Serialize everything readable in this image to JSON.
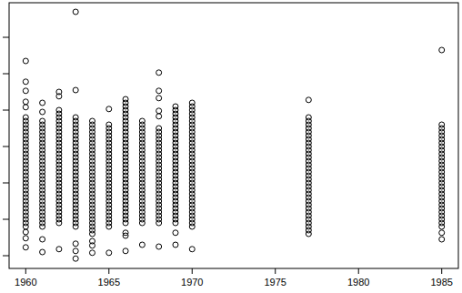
{
  "chart_data": {
    "type": "scatter",
    "x": [
      1960,
      1961,
      1962,
      1963,
      1964,
      1965,
      1966,
      1967,
      1968,
      1969,
      1970,
      1977,
      1985
    ],
    "values": [
      [
        0.8,
        0.9,
        1.0,
        1.1,
        1.2,
        1.3,
        1.4,
        1.5,
        1.6,
        1.7,
        1.8,
        1.9,
        2.0,
        2.1,
        2.2,
        2.3,
        2.4,
        2.5,
        2.6,
        2.7,
        2.8,
        2.9,
        3.0,
        3.1,
        3.2,
        3.3,
        3.4,
        3.5,
        3.6,
        3.7,
        3.8,
        5.35,
        4.78,
        4.53,
        4.23,
        4.08,
        0.65,
        0.48,
        0.23
      ],
      [
        0.8,
        0.9,
        1.0,
        1.1,
        1.2,
        1.3,
        1.4,
        1.5,
        1.6,
        1.7,
        1.8,
        1.9,
        2.0,
        2.1,
        2.2,
        2.3,
        2.4,
        2.5,
        2.6,
        2.7,
        2.8,
        2.9,
        3.0,
        3.1,
        3.2,
        3.3,
        3.4,
        3.5,
        3.6,
        3.7,
        4.2,
        3.95,
        0.45,
        0.1
      ],
      [
        0.9,
        1.0,
        1.1,
        1.2,
        1.3,
        1.4,
        1.5,
        1.6,
        1.7,
        1.8,
        1.9,
        2.0,
        2.1,
        2.2,
        2.3,
        2.4,
        2.5,
        2.6,
        2.7,
        2.8,
        2.9,
        3.0,
        3.1,
        3.2,
        3.3,
        3.4,
        3.5,
        3.6,
        3.7,
        3.8,
        3.9,
        4.0,
        4.5,
        4.38,
        0.18
      ],
      [
        0.8,
        0.9,
        1.0,
        1.1,
        1.2,
        1.3,
        1.4,
        1.5,
        1.6,
        1.7,
        1.8,
        1.9,
        2.0,
        2.1,
        2.2,
        2.3,
        2.4,
        2.5,
        2.6,
        2.7,
        2.8,
        2.9,
        3.0,
        3.1,
        3.2,
        3.3,
        3.4,
        3.5,
        3.6,
        3.7,
        3.8,
        6.7,
        4.55,
        0.33,
        0.13,
        -0.08
      ],
      [
        0.6,
        0.7,
        0.8,
        0.9,
        1.0,
        1.1,
        1.2,
        1.3,
        1.4,
        1.5,
        1.6,
        1.7,
        1.8,
        1.9,
        2.0,
        2.1,
        2.2,
        2.3,
        2.4,
        2.5,
        2.6,
        2.7,
        2.8,
        2.9,
        3.0,
        3.1,
        3.2,
        3.3,
        3.4,
        3.5,
        3.6,
        3.7,
        0.4,
        0.28,
        0.08
      ],
      [
        0.8,
        0.9,
        1.0,
        1.1,
        1.2,
        1.3,
        1.4,
        1.5,
        1.6,
        1.7,
        1.8,
        1.9,
        2.0,
        2.1,
        2.2,
        2.3,
        2.4,
        2.5,
        2.6,
        2.7,
        2.8,
        2.9,
        3.0,
        3.1,
        3.2,
        3.3,
        3.4,
        3.5,
        3.6,
        4.03,
        0.08
      ],
      [
        0.9,
        1.0,
        1.1,
        1.2,
        1.3,
        1.4,
        1.5,
        1.6,
        1.7,
        1.8,
        1.9,
        2.0,
        2.1,
        2.2,
        2.3,
        2.4,
        2.5,
        2.6,
        2.7,
        2.8,
        2.9,
        3.0,
        3.1,
        3.2,
        3.3,
        3.4,
        3.5,
        3.6,
        3.7,
        3.8,
        3.9,
        4.0,
        4.1,
        4.2,
        4.3,
        0.63,
        0.55,
        0.13
      ],
      [
        0.9,
        1.0,
        1.1,
        1.2,
        1.3,
        1.4,
        1.5,
        1.6,
        1.7,
        1.8,
        1.9,
        2.0,
        2.1,
        2.2,
        2.3,
        2.4,
        2.5,
        2.6,
        2.7,
        2.8,
        2.9,
        3.0,
        3.1,
        3.2,
        3.3,
        3.4,
        3.5,
        3.6,
        3.7,
        0.3
      ],
      [
        0.9,
        1.0,
        1.1,
        1.2,
        1.3,
        1.4,
        1.5,
        1.6,
        1.7,
        1.8,
        1.9,
        2.0,
        2.1,
        2.2,
        2.3,
        2.4,
        2.5,
        2.6,
        2.7,
        2.8,
        2.9,
        3.0,
        3.1,
        3.2,
        3.3,
        3.4,
        3.5,
        5.03,
        4.53,
        4.33,
        3.98,
        3.83,
        0.25
      ],
      [
        0.9,
        1.0,
        1.1,
        1.2,
        1.3,
        1.4,
        1.5,
        1.6,
        1.7,
        1.8,
        1.9,
        2.0,
        2.1,
        2.2,
        2.3,
        2.4,
        2.5,
        2.6,
        2.7,
        2.8,
        2.9,
        3.0,
        3.1,
        3.2,
        3.3,
        3.4,
        3.5,
        3.6,
        3.7,
        3.8,
        3.9,
        4.0,
        4.1,
        0.63,
        0.3
      ],
      [
        0.8,
        0.9,
        1.0,
        1.1,
        1.2,
        1.3,
        1.4,
        1.5,
        1.6,
        1.7,
        1.8,
        1.9,
        2.0,
        2.1,
        2.2,
        2.3,
        2.4,
        2.5,
        2.6,
        2.7,
        2.8,
        2.9,
        3.0,
        3.1,
        3.2,
        3.3,
        3.4,
        3.5,
        3.6,
        3.7,
        3.8,
        3.9,
        4.0,
        4.1,
        4.2,
        0.18
      ],
      [
        0.6,
        0.7,
        0.8,
        0.9,
        1.0,
        1.1,
        1.2,
        1.3,
        1.4,
        1.5,
        1.6,
        1.7,
        1.8,
        1.9,
        2.0,
        2.1,
        2.2,
        2.3,
        2.4,
        2.5,
        2.6,
        2.7,
        2.8,
        2.9,
        3.0,
        3.1,
        3.2,
        3.3,
        3.4,
        3.5,
        3.6,
        3.7,
        3.8,
        4.28
      ],
      [
        0.8,
        0.9,
        1.0,
        1.1,
        1.2,
        1.3,
        1.4,
        1.5,
        1.6,
        1.7,
        1.8,
        1.9,
        2.0,
        2.1,
        2.2,
        2.3,
        2.4,
        2.5,
        2.6,
        2.7,
        2.8,
        2.9,
        3.0,
        3.1,
        3.2,
        3.3,
        3.4,
        3.5,
        3.6,
        5.65,
        0.63,
        0.45
      ]
    ],
    "xlim": [
      1959,
      1986
    ],
    "ylim": [
      -0.35,
      6.95
    ],
    "xticks": [
      1960,
      1965,
      1970,
      1975,
      1980,
      1985
    ],
    "yticks": [
      0,
      1,
      2,
      3,
      4,
      5,
      6
    ],
    "tick_labels": "x",
    "marker": "open_circle",
    "color": "#000000"
  }
}
